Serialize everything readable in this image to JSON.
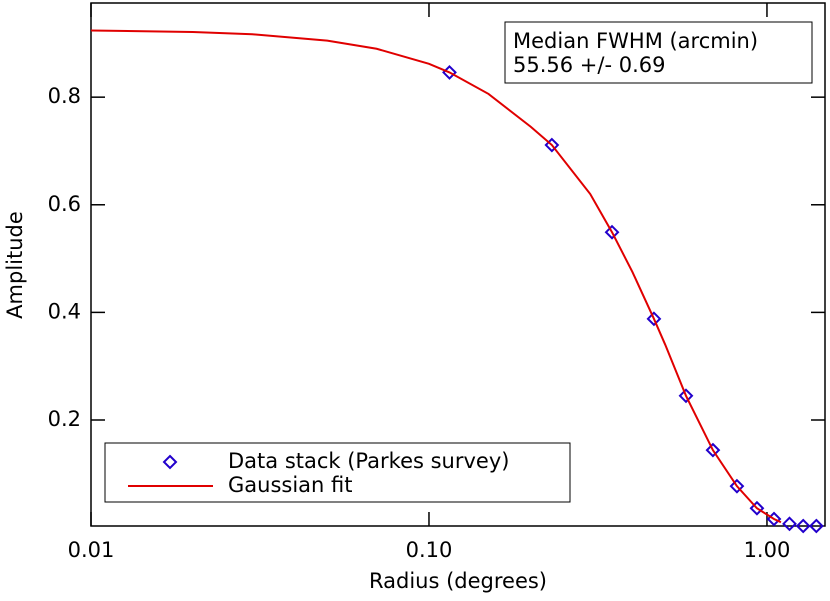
{
  "chart_data": {
    "type": "scatter",
    "x_label": "Radius (degrees)",
    "y_label": "Amplitude",
    "xscale": "log",
    "xlim": [
      0.01,
      1.485
    ],
    "ylim": [
      0.003,
      0.975
    ],
    "xticks": [
      0.01,
      {
        "value": 0.1,
        "label": "0.10"
      },
      {
        "value": 1,
        "label": "1.00"
      }
    ],
    "yticks": [
      0.2,
      0.4,
      0.6,
      0.8
    ],
    "legend": "lower left",
    "annotations": [
      "Median FWHM (arcmin)",
      "55.56 +/- 0.69"
    ],
    "series": [
      {
        "name": "Data stack (Parkes survey)",
        "type": "scatter",
        "color": "#2200cc",
        "x": [
          0.115,
          0.231,
          0.348,
          0.463,
          0.576,
          0.692,
          0.815,
          0.934,
          1.049,
          1.166,
          1.28,
          1.4
        ],
        "values": [
          0.846,
          0.711,
          0.549,
          0.388,
          0.245,
          0.144,
          0.077,
          0.036,
          0.016,
          0.007,
          0.003,
          0.003
        ]
      },
      {
        "name": "Gaussian fit",
        "type": "line",
        "color": "#e00000",
        "x": [
          0.01,
          0.02,
          0.03,
          0.05,
          0.07,
          0.1,
          0.115,
          0.15,
          0.2,
          0.231,
          0.3,
          0.348,
          0.4,
          0.463,
          0.5,
          0.576,
          0.692,
          0.815,
          0.934,
          1.049,
          1.1
        ],
        "values": [
          0.924,
          0.921,
          0.917,
          0.905,
          0.89,
          0.862,
          0.846,
          0.806,
          0.745,
          0.711,
          0.62,
          0.549,
          0.475,
          0.388,
          0.34,
          0.245,
          0.144,
          0.077,
          0.036,
          0.016,
          0.01
        ]
      }
    ]
  }
}
